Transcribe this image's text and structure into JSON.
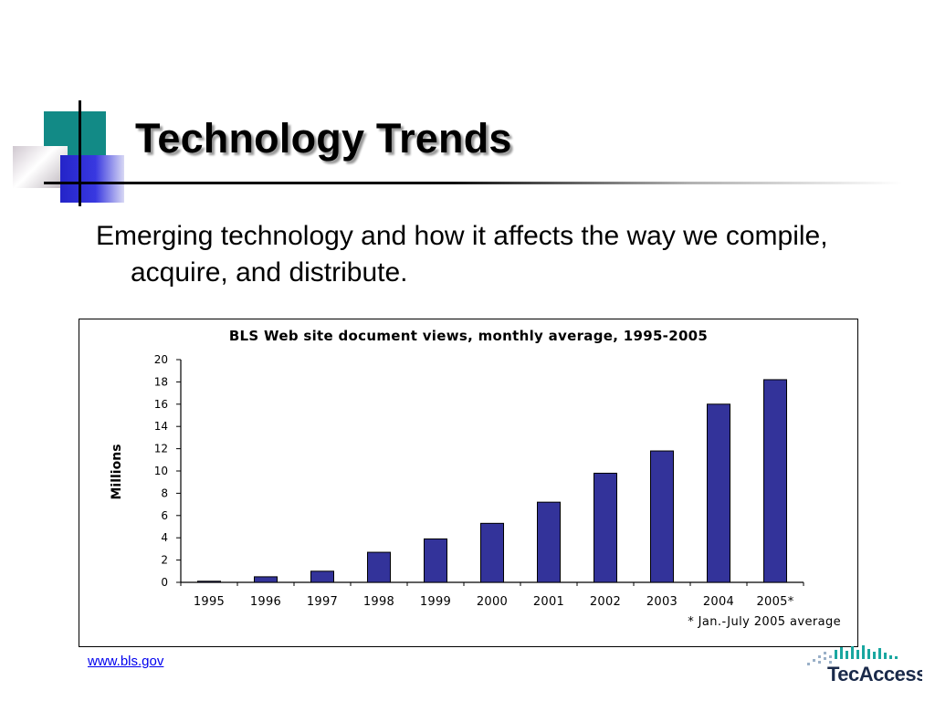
{
  "slide": {
    "title": "Technology Trends",
    "subtitle": "Emerging technology and how it affects the way we compile, acquire, and distribute.",
    "link_text": "www.bls.gov",
    "logo_text": "TecAccess"
  },
  "colors": {
    "bar": "#33339a",
    "link": "#0000ee",
    "accent_teal": "#128a86",
    "accent_blue": "#2424c8"
  },
  "chart_data": {
    "type": "bar",
    "title": "BLS Web site document views, monthly average, 1995-2005",
    "ylabel": "Millions",
    "xlabel": "",
    "categories": [
      "1995",
      "1996",
      "1997",
      "1998",
      "1999",
      "2000",
      "2001",
      "2002",
      "2003",
      "2004",
      "2005*"
    ],
    "values": [
      0.1,
      0.5,
      1.0,
      2.7,
      3.9,
      5.3,
      7.2,
      9.8,
      11.8,
      16.0,
      18.2
    ],
    "ylim": [
      0,
      20
    ],
    "yticks": [
      "0",
      "2",
      "4",
      "6",
      "8",
      "10",
      "12",
      "14",
      "16",
      "18",
      "20"
    ],
    "footnote": "* Jan.-July 2005 average",
    "grid": false,
    "legend": "none"
  }
}
